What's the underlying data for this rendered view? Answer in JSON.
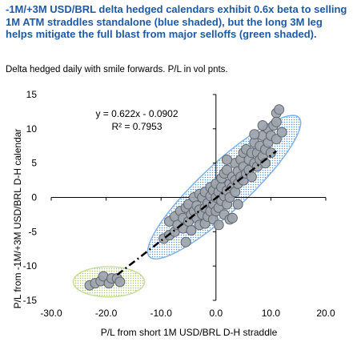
{
  "header": {
    "headline": "-1M/+3M USD/BRL delta hedged calendars exhibit 0.6x beta to selling 1M ATM straddles standalone (blue shaded), but the long 3M leg helps mitigate the full blast from major selloffs (green shaded).",
    "subtitle": "Delta hedged daily with smile forwards. P/L in vol pnts."
  },
  "colors": {
    "headline": "#1e5aa8",
    "blue_shade": "#7fb3e6",
    "green_shade": "#c6de98",
    "point_fill": "#9ea4ad",
    "point_stroke": "#5f656e",
    "trendline": "#000000"
  },
  "chart_data": {
    "type": "scatter",
    "xlabel": "P/L from short 1M USD/BRL D-H straddle",
    "ylabel": "P/L from -1M/+3M USD/BRL D-H calendar",
    "xlim": [
      -30,
      20
    ],
    "ylim": [
      -15,
      15
    ],
    "x_ticks": [
      -30,
      -20,
      -10,
      0,
      10,
      20
    ],
    "y_ticks": [
      -15,
      -10,
      -5,
      0,
      5,
      10,
      15
    ],
    "x_tick_labels": [
      "-30.0",
      "-20.0",
      "-10.0",
      "0.0",
      "10.0",
      "20.0"
    ],
    "y_tick_labels": [
      "-15",
      "-10",
      "-5",
      "0",
      "5",
      "10",
      "15"
    ],
    "grid": false,
    "trendline": {
      "slope": 0.622,
      "intercept": -0.0902,
      "x_range": [
        -18,
        11
      ],
      "equation_label": "y = 0.622x - 0.0902",
      "r2_label": "R² = 0.7953"
    },
    "shaded_regions": [
      {
        "color": "blue",
        "center": [
          1.5,
          1.5
        ],
        "semi_axes": [
          17,
          3.8
        ],
        "angle_deg": 36
      },
      {
        "color": "green",
        "center": [
          -19.5,
          -12.3
        ],
        "semi_axes": [
          6.5,
          2.2
        ],
        "angle_deg": 0
      }
    ],
    "points": [
      {
        "x": -23,
        "y": -12.8
      },
      {
        "x": -22,
        "y": -12.5
      },
      {
        "x": -21,
        "y": -12.2
      },
      {
        "x": -20.5,
        "y": -11.5
      },
      {
        "x": -19.5,
        "y": -12.5
      },
      {
        "x": -19,
        "y": -11.8
      },
      {
        "x": -18,
        "y": -11.8
      },
      {
        "x": -17.5,
        "y": -12.3
      },
      {
        "x": -9.5,
        "y": -6
      },
      {
        "x": -8.5,
        "y": -5.5
      },
      {
        "x": -8.5,
        "y": -3.5
      },
      {
        "x": -7.5,
        "y": -5
      },
      {
        "x": -7.5,
        "y": -2.8
      },
      {
        "x": -7,
        "y": -4
      },
      {
        "x": -6.5,
        "y": -2
      },
      {
        "x": -6,
        "y": -4.5
      },
      {
        "x": -6,
        "y": -3
      },
      {
        "x": -5.5,
        "y": -6.5
      },
      {
        "x": -5.5,
        "y": -1.5
      },
      {
        "x": -5,
        "y": -3.5
      },
      {
        "x": -5,
        "y": -1
      },
      {
        "x": -4.5,
        "y": -2.5
      },
      {
        "x": -4.5,
        "y": -4.8
      },
      {
        "x": -4,
        "y": -2
      },
      {
        "x": -4,
        "y": 0
      },
      {
        "x": -3.5,
        "y": -3
      },
      {
        "x": -3.5,
        "y": -1.2
      },
      {
        "x": -3,
        "y": -4
      },
      {
        "x": -3,
        "y": -1.8
      },
      {
        "x": -3,
        "y": 0.5
      },
      {
        "x": -2.5,
        "y": -2.5
      },
      {
        "x": -2.5,
        "y": 0
      },
      {
        "x": -2,
        "y": -1.5
      },
      {
        "x": -2,
        "y": -3.8
      },
      {
        "x": -2,
        "y": 0.8
      },
      {
        "x": -1.5,
        "y": -0.8
      },
      {
        "x": -1.5,
        "y": -2.8
      },
      {
        "x": -1,
        "y": -2
      },
      {
        "x": -1,
        "y": 0.2
      },
      {
        "x": -1,
        "y": 1.5
      },
      {
        "x": -0.5,
        "y": -1
      },
      {
        "x": -0.5,
        "y": -3.2
      },
      {
        "x": -0.5,
        "y": 1
      },
      {
        "x": 0,
        "y": -2
      },
      {
        "x": 0,
        "y": 0
      },
      {
        "x": 0,
        "y": 2
      },
      {
        "x": 0.5,
        "y": -1.5
      },
      {
        "x": 0.5,
        "y": 0.8
      },
      {
        "x": 0.5,
        "y": -4
      },
      {
        "x": 1,
        "y": -0.5
      },
      {
        "x": 1,
        "y": 1.5
      },
      {
        "x": 1,
        "y": 2.8
      },
      {
        "x": 1.5,
        "y": 0.2
      },
      {
        "x": 1.5,
        "y": -2.5
      },
      {
        "x": 1.5,
        "y": 3.5
      },
      {
        "x": 2,
        "y": 1
      },
      {
        "x": 2,
        "y": -1
      },
      {
        "x": 2,
        "y": 4
      },
      {
        "x": 2.5,
        "y": 2
      },
      {
        "x": 2.5,
        "y": -3.2
      },
      {
        "x": 2.5,
        "y": 0
      },
      {
        "x": 3,
        "y": 1.5
      },
      {
        "x": 3,
        "y": 3
      },
      {
        "x": 3,
        "y": -3
      },
      {
        "x": 3.5,
        "y": 2.5
      },
      {
        "x": 3.5,
        "y": 0.8
      },
      {
        "x": 3.5,
        "y": 5
      },
      {
        "x": 4,
        "y": 2
      },
      {
        "x": 4,
        "y": 3.8
      },
      {
        "x": 4,
        "y": -1
      },
      {
        "x": 4.5,
        "y": 3
      },
      {
        "x": 4.5,
        "y": 5.5
      },
      {
        "x": 5,
        "y": 2.5
      },
      {
        "x": 5,
        "y": 4.5
      },
      {
        "x": 5,
        "y": 6.5
      },
      {
        "x": 5.5,
        "y": 3.5
      },
      {
        "x": 5.5,
        "y": 7
      },
      {
        "x": 6,
        "y": 4
      },
      {
        "x": 6,
        "y": 5.5
      },
      {
        "x": 6.5,
        "y": 3
      },
      {
        "x": 6.5,
        "y": 6.5
      },
      {
        "x": 7,
        "y": 5
      },
      {
        "x": 7,
        "y": 8
      },
      {
        "x": 7.5,
        "y": 4.5
      },
      {
        "x": 7.5,
        "y": 6.5
      },
      {
        "x": 8,
        "y": 5.5
      },
      {
        "x": 8,
        "y": 7.5
      },
      {
        "x": 8.5,
        "y": 6
      },
      {
        "x": 8.5,
        "y": 9
      },
      {
        "x": 9,
        "y": 7
      },
      {
        "x": 9,
        "y": 5
      },
      {
        "x": 9.5,
        "y": 8
      },
      {
        "x": 9.5,
        "y": 10
      },
      {
        "x": 10,
        "y": 6.5
      },
      {
        "x": 10,
        "y": 9
      },
      {
        "x": 10.5,
        "y": 10.5
      },
      {
        "x": 11,
        "y": 8.5
      },
      {
        "x": 11,
        "y": 12.3
      },
      {
        "x": 11.5,
        "y": 12.8
      },
      {
        "x": 12,
        "y": 9.5
      },
      {
        "x": 11,
        "y": 11
      },
      {
        "x": 7,
        "y": 9.2
      },
      {
        "x": 8.5,
        "y": 10.5
      },
      {
        "x": 2,
        "y": 5.5
      }
    ]
  }
}
